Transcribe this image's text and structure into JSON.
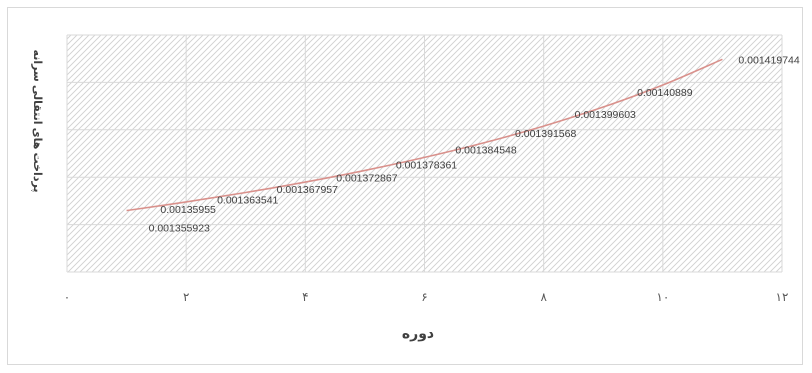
{
  "chart_data": {
    "type": "line",
    "title": "",
    "xlabel": "دوره",
    "ylabel": "پرداخت های انتقالی سرانه",
    "xlim": [
      0,
      12
    ],
    "ylim": [
      0.00133,
      0.00143
    ],
    "x_tick_values": [
      0,
      2,
      4,
      6,
      8,
      10,
      12
    ],
    "x_tick_labels": [
      "۰",
      "۲",
      "۴",
      "۶",
      "۸",
      "۱۰",
      "۱۲"
    ],
    "y_gridlines": [
      0.00133,
      0.00134,
      0.00135,
      0.00136,
      0.00137,
      0.00138,
      0.00139,
      0.0014,
      0.00141,
      0.00142,
      0.00143
    ],
    "grid": true,
    "legend": "none",
    "series": [
      {
        "color": "#d9918c",
        "points": [
          {
            "x": 1,
            "y": 0.001355923,
            "label": "0.001355923"
          },
          {
            "x": 2,
            "y": 0.00135955,
            "label": "0.00135955"
          },
          {
            "x": 3,
            "y": 0.001363541,
            "label": "0.001363541"
          },
          {
            "x": 4,
            "y": 0.001367957,
            "label": "0.001367957"
          },
          {
            "x": 5,
            "y": 0.001372867,
            "label": "0.001372867"
          },
          {
            "x": 6,
            "y": 0.001378361,
            "label": "0.001378361"
          },
          {
            "x": 7,
            "y": 0.001384548,
            "label": "0.001384548"
          },
          {
            "x": 8,
            "y": 0.001391568,
            "label": "0.001391568"
          },
          {
            "x": 9,
            "y": 0.001399603,
            "label": "0.001399603"
          },
          {
            "x": 10,
            "y": 0.00140889,
            "label": "0.00140889"
          },
          {
            "x": 11,
            "y": 0.001419744,
            "label": "0.001419744"
          }
        ]
      }
    ]
  }
}
